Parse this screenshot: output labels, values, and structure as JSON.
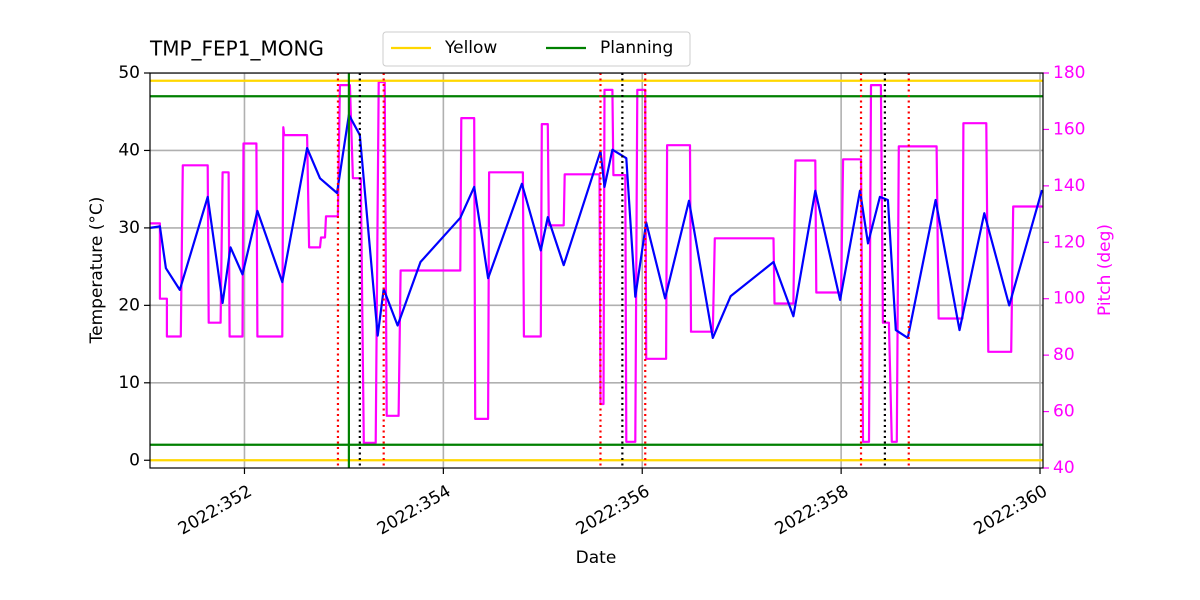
{
  "chart_data": {
    "type": "line",
    "title": "TMP_FEP1_MONG",
    "xlabel": "Date",
    "ylabel": "Temperature (°C)",
    "y2label": "Pitch (deg)",
    "y2color": "#ff00ff",
    "grid": true,
    "xlim": [
      351.05,
      360.03
    ],
    "xticks": [
      {
        "value": 352,
        "label": "2022:352"
      },
      {
        "value": 354,
        "label": "2022:354"
      },
      {
        "value": 356,
        "label": "2022:356"
      },
      {
        "value": 358,
        "label": "2022:358"
      },
      {
        "value": 360,
        "label": "2022:360"
      }
    ],
    "ylim": [
      -1,
      50
    ],
    "yticks": [
      0,
      10,
      20,
      30,
      40,
      50
    ],
    "y2lim": [
      40,
      180
    ],
    "y2ticks": [
      40,
      60,
      80,
      100,
      120,
      140,
      160,
      180
    ],
    "series": [
      {
        "color": "#0000ff",
        "x": [
          351.05,
          351.15,
          351.21,
          351.35,
          351.63,
          351.78,
          351.86,
          351.98,
          352.13,
          352.38,
          352.63,
          352.76,
          352.93,
          353.05,
          353.16,
          353.34,
          353.4,
          353.54,
          353.77,
          354.17,
          354.31,
          354.45,
          354.79,
          354.98,
          355.05,
          355.21,
          355.58,
          355.62,
          355.7,
          355.84,
          355.93,
          356.04,
          356.23,
          356.47,
          356.71,
          356.89,
          357.32,
          357.52,
          357.74,
          357.99,
          358.19,
          358.27,
          358.39,
          358.47,
          358.55,
          358.67,
          358.95,
          359.19,
          359.44,
          359.69,
          360.02
        ],
        "values": [
          30.0,
          30.2,
          24.8,
          22.0,
          34.0,
          20.3,
          27.5,
          24.0,
          32.2,
          23.0,
          40.3,
          36.4,
          34.5,
          44.6,
          42.0,
          16.1,
          22.1,
          17.4,
          25.6,
          31.3,
          35.3,
          23.5,
          35.7,
          27.1,
          31.4,
          25.2,
          39.9,
          35.3,
          40.1,
          39.0,
          21.1,
          30.7,
          20.9,
          33.5,
          15.8,
          21.2,
          25.6,
          18.6,
          34.8,
          20.7,
          34.8,
          28.0,
          34.0,
          33.6,
          16.8,
          15.8,
          33.6,
          16.8,
          31.9,
          20.0,
          34.9
        ]
      },
      {
        "color": "#ff00ff",
        "axis": "y2",
        "x": [
          351.05,
          351.15,
          351.15,
          351.22,
          351.22,
          351.36,
          351.38,
          351.63,
          351.64,
          351.76,
          351.78,
          351.84,
          351.85,
          351.98,
          351.99,
          352.12,
          352.13,
          352.38,
          352.39,
          352.4,
          352.63,
          352.65,
          352.76,
          352.77,
          352.81,
          352.82,
          352.94,
          352.96,
          353.06,
          353.09,
          353.17,
          353.2,
          353.32,
          353.35,
          353.41,
          353.43,
          353.55,
          353.57,
          354.17,
          354.18,
          354.31,
          354.32,
          354.45,
          354.46,
          354.8,
          354.81,
          354.98,
          354.99,
          355.05,
          355.06,
          355.21,
          355.22,
          355.57,
          355.58,
          355.61,
          355.62,
          355.7,
          355.71,
          355.83,
          355.84,
          355.93,
          355.95,
          356.03,
          356.04,
          356.24,
          356.25,
          356.48,
          356.49,
          356.71,
          356.73,
          357.32,
          357.33,
          357.52,
          357.54,
          357.74,
          357.75,
          358.0,
          358.02,
          358.2,
          358.22,
          358.28,
          358.3,
          358.4,
          358.42,
          358.48,
          358.51,
          358.56,
          358.58,
          358.96,
          358.98,
          359.22,
          359.23,
          359.46,
          359.48,
          359.71,
          359.73,
          360.03
        ],
        "values": [
          126.7,
          126.7,
          100,
          100,
          86.6,
          86.6,
          147.3,
          147.3,
          91.5,
          91.5,
          144.8,
          144.8,
          86.6,
          86.6,
          155,
          155,
          86.6,
          86.6,
          160.8,
          158,
          158,
          118.2,
          118.2,
          121.7,
          121.7,
          129.2,
          129.2,
          175.7,
          175.7,
          142.7,
          142.7,
          48.9,
          48.9,
          176.8,
          176.8,
          58.5,
          58.5,
          110,
          110,
          164,
          164,
          57.4,
          57.4,
          144.8,
          144.8,
          86.6,
          86.6,
          161.9,
          161.9,
          126,
          126,
          144.1,
          144.1,
          62.7,
          62.7,
          174,
          174,
          143.8,
          143.8,
          49.3,
          49.3,
          174,
          174,
          78.7,
          78.7,
          154.4,
          154.4,
          88.3,
          88.3,
          121.4,
          121.4,
          98.3,
          98.3,
          149,
          149,
          102.2,
          102.2,
          149.4,
          149.4,
          49.3,
          49.3,
          175.7,
          175.7,
          91.5,
          91.5,
          49.3,
          49.3,
          154,
          154,
          93,
          93,
          162.2,
          162.2,
          81.2,
          81.2,
          132.7,
          132.7
        ]
      }
    ],
    "hlines": [
      {
        "name": "Yellow",
        "color": "#ffd700",
        "values": [
          0,
          49
        ]
      },
      {
        "name": "Planning",
        "color": "#008000",
        "values": [
          2,
          47
        ]
      }
    ],
    "vlines": [
      {
        "color": "#ff0000",
        "style": "dotted",
        "x": [
          352.94,
          353.4,
          355.58,
          356.03,
          358.2,
          358.68
        ]
      },
      {
        "color": "#000000",
        "style": "dotted",
        "x": [
          353.16,
          355.8,
          358.44
        ]
      },
      {
        "color": "#008000",
        "style": "solid",
        "x": [
          353.05
        ]
      }
    ]
  }
}
